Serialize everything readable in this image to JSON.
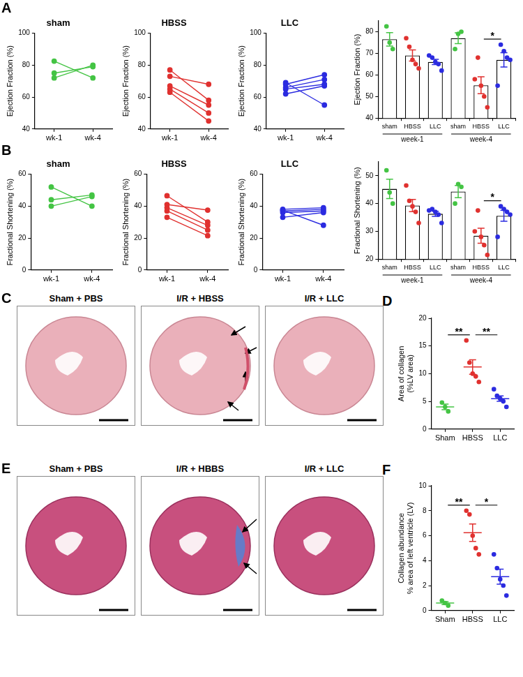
{
  "chart_data": [
    {
      "type": "line",
      "title": "sham",
      "ylabel": "Ejection Fraction (%)",
      "categories": [
        "wk-1",
        "wk-4"
      ],
      "series": [
        {
          "color": "#44c444",
          "values": [
            82.5,
            72
          ]
        },
        {
          "color": "#44c444",
          "values": [
            75,
            79
          ]
        },
        {
          "color": "#44c444",
          "values": [
            72,
            80
          ]
        }
      ],
      "ylim": [
        40,
        100
      ],
      "yticks": [
        40,
        60,
        80,
        100
      ],
      "grid": false
    },
    {
      "type": "line",
      "title": "HBSS",
      "ylabel": "Ejection Fraction (%)",
      "categories": [
        "wk-1",
        "wk-4"
      ],
      "series": [
        {
          "color": "#e0312f",
          "values": [
            77,
            58
          ]
        },
        {
          "color": "#e0312f",
          "values": [
            73,
            68
          ]
        },
        {
          "color": "#e0312f",
          "values": [
            67,
            55
          ]
        },
        {
          "color": "#e0312f",
          "values": [
            65,
            50
          ]
        },
        {
          "color": "#e0312f",
          "values": [
            63,
            45
          ]
        }
      ],
      "ylim": [
        40,
        100
      ],
      "yticks": [
        40,
        60,
        80,
        100
      ],
      "grid": false
    },
    {
      "type": "line",
      "title": "LLC",
      "ylabel": "Ejection Fraction (%)",
      "categories": [
        "wk-1",
        "wk-4"
      ],
      "series": [
        {
          "color": "#2b2be0",
          "values": [
            69,
            55
          ]
        },
        {
          "color": "#2b2be0",
          "values": [
            68,
            74
          ]
        },
        {
          "color": "#2b2be0",
          "values": [
            66,
            71
          ]
        },
        {
          "color": "#2b2be0",
          "values": [
            65,
            68
          ]
        },
        {
          "color": "#2b2be0",
          "values": [
            62,
            67
          ]
        }
      ],
      "ylim": [
        40,
        100
      ],
      "yticks": [
        40,
        60,
        80,
        100
      ],
      "grid": false
    },
    {
      "type": "bar",
      "ylabel": "Ejection Fraction (%)",
      "categories": [
        "sham",
        "HBSS",
        "LLC",
        "sham",
        "HBSS",
        "LLC"
      ],
      "groups": [
        "week-1",
        "week-4"
      ],
      "values": [
        76.5,
        69,
        66,
        77,
        55.2,
        67
      ],
      "errors": [
        3.1,
        2.6,
        1.2,
        2.5,
        3.9,
        3.3
      ],
      "points": [
        [
          82.5,
          75,
          72
        ],
        [
          77,
          73,
          67,
          65,
          63
        ],
        [
          69,
          68,
          66,
          65,
          62
        ],
        [
          72,
          79,
          80
        ],
        [
          58,
          68,
          55,
          50,
          45
        ],
        [
          55,
          74,
          71,
          68,
          67
        ]
      ],
      "colors": [
        "#44c444",
        "#e0312f",
        "#2b2be0",
        "#44c444",
        "#e0312f",
        "#2b2be0"
      ],
      "ylim": [
        40,
        85
      ],
      "yticks": [
        40,
        50,
        60,
        70,
        80
      ],
      "grid": false,
      "annotations": [
        {
          "text": "*",
          "between": [
            4,
            5
          ]
        }
      ]
    },
    {
      "type": "line",
      "title": "sham",
      "ylabel": "Fractional Shortening (%)",
      "categories": [
        "wk-1",
        "wk-4"
      ],
      "series": [
        {
          "color": "#44c444",
          "values": [
            52,
            40
          ]
        },
        {
          "color": "#44c444",
          "values": [
            44,
            47
          ]
        },
        {
          "color": "#44c444",
          "values": [
            40,
            46
          ]
        }
      ],
      "ylim": [
        0,
        60
      ],
      "yticks": [
        0,
        20,
        40,
        60
      ],
      "grid": false
    },
    {
      "type": "line",
      "title": "HBSS",
      "ylabel": "Fractional Shortening (%)",
      "categories": [
        "wk-1",
        "wk-4"
      ],
      "series": [
        {
          "color": "#e0312f",
          "values": [
            46.5,
            30
          ]
        },
        {
          "color": "#e0312f",
          "values": [
            41,
            37.5
          ]
        },
        {
          "color": "#e0312f",
          "values": [
            39,
            28
          ]
        },
        {
          "color": "#e0312f",
          "values": [
            37,
            25
          ]
        },
        {
          "color": "#e0312f",
          "values": [
            33,
            21.5
          ]
        }
      ],
      "ylim": [
        0,
        60
      ],
      "yticks": [
        0,
        20,
        40,
        60
      ],
      "grid": false
    },
    {
      "type": "line",
      "title": "LLC",
      "ylabel": "Fractional Shortening (%)",
      "categories": [
        "wk-1",
        "wk-4"
      ],
      "series": [
        {
          "color": "#2b2be0",
          "values": [
            37.5,
            28
          ]
        },
        {
          "color": "#2b2be0",
          "values": [
            38,
            39
          ]
        },
        {
          "color": "#2b2be0",
          "values": [
            37,
            38
          ]
        },
        {
          "color": "#2b2be0",
          "values": [
            36,
            37
          ]
        },
        {
          "color": "#2b2be0",
          "values": [
            33,
            36
          ]
        }
      ],
      "ylim": [
        0,
        60
      ],
      "yticks": [
        0,
        20,
        40,
        60
      ],
      "grid": false
    },
    {
      "type": "bar",
      "ylabel": "Fractional Shortening (%)",
      "categories": [
        "sham",
        "HBSS",
        "LLC",
        "sham",
        "HBSS",
        "LLC"
      ],
      "groups": [
        "week-1",
        "week-4"
      ],
      "values": [
        45.3,
        39.3,
        36.3,
        44.3,
        28.4,
        35.6
      ],
      "errors": [
        3.5,
        2.2,
        0.9,
        2.2,
        2.7,
        2.0
      ],
      "points": [
        [
          52,
          44,
          40
        ],
        [
          46.5,
          41,
          39,
          37,
          33
        ],
        [
          37.5,
          38,
          37,
          36,
          33
        ],
        [
          40,
          47,
          46
        ],
        [
          30,
          37.5,
          28,
          25,
          21.5
        ],
        [
          28,
          39,
          38,
          37,
          36
        ]
      ],
      "colors": [
        "#44c444",
        "#e0312f",
        "#2b2be0",
        "#44c444",
        "#e0312f",
        "#2b2be0"
      ],
      "ylim": [
        20,
        55
      ],
      "yticks": [
        20,
        30,
        40,
        50
      ],
      "grid": false,
      "annotations": [
        {
          "text": "*",
          "between": [
            4,
            5
          ]
        }
      ]
    },
    {
      "type": "dot",
      "ylabel": [
        "Area of collagen",
        "(%LV area)"
      ],
      "categories": [
        "Sham",
        "HBSS",
        "LLC"
      ],
      "values": [
        4.0,
        11.2,
        5.5
      ],
      "errors": [
        0.5,
        1.3,
        0.5
      ],
      "points": [
        [
          4.8,
          4.0,
          3.2
        ],
        [
          16,
          12,
          10,
          9.5,
          8.5
        ],
        [
          7.2,
          6,
          5.5,
          5,
          4
        ]
      ],
      "colors": [
        "#44c444",
        "#e0312f",
        "#2b2be0"
      ],
      "ylim": [
        0,
        20
      ],
      "yticks": [
        0,
        5,
        10,
        15,
        20
      ],
      "grid": false,
      "annotations": [
        {
          "text": "**",
          "between": [
            0,
            1
          ]
        },
        {
          "text": "**",
          "between": [
            1,
            2
          ]
        }
      ]
    },
    {
      "type": "dot",
      "ylabel": [
        "Collagen abundance",
        "% area of left ventricle (LV)"
      ],
      "categories": [
        "Sham",
        "HBSS",
        "LLC"
      ],
      "values": [
        0.6,
        6.24,
        2.72
      ],
      "errors": [
        0.12,
        0.7,
        0.6
      ],
      "points": [
        [
          0.8,
          0.6,
          0.4
        ],
        [
          8,
          7.7,
          6,
          5,
          4.5
        ],
        [
          4.5,
          3.4,
          2.5,
          2,
          1.2
        ]
      ],
      "colors": [
        "#44c444",
        "#e0312f",
        "#2b2be0"
      ],
      "ylim": [
        0,
        10
      ],
      "yticks": [
        0,
        2,
        4,
        6,
        8,
        10
      ],
      "grid": false,
      "annotations": [
        {
          "text": "**",
          "between": [
            0,
            1
          ]
        },
        {
          "text": "*",
          "between": [
            1,
            2
          ]
        }
      ]
    }
  ],
  "panel_letters": [
    "A",
    "B",
    "C",
    "D",
    "E",
    "F"
  ],
  "images": [
    {
      "letter": "C",
      "titles": [
        "Sham + PBS",
        "I/R + HBSS",
        "I/R + LLC"
      ]
    },
    {
      "letter": "E",
      "titles": [
        "Sham + PBS",
        "I/R + HBBS",
        "I/R + LLC"
      ]
    }
  ]
}
